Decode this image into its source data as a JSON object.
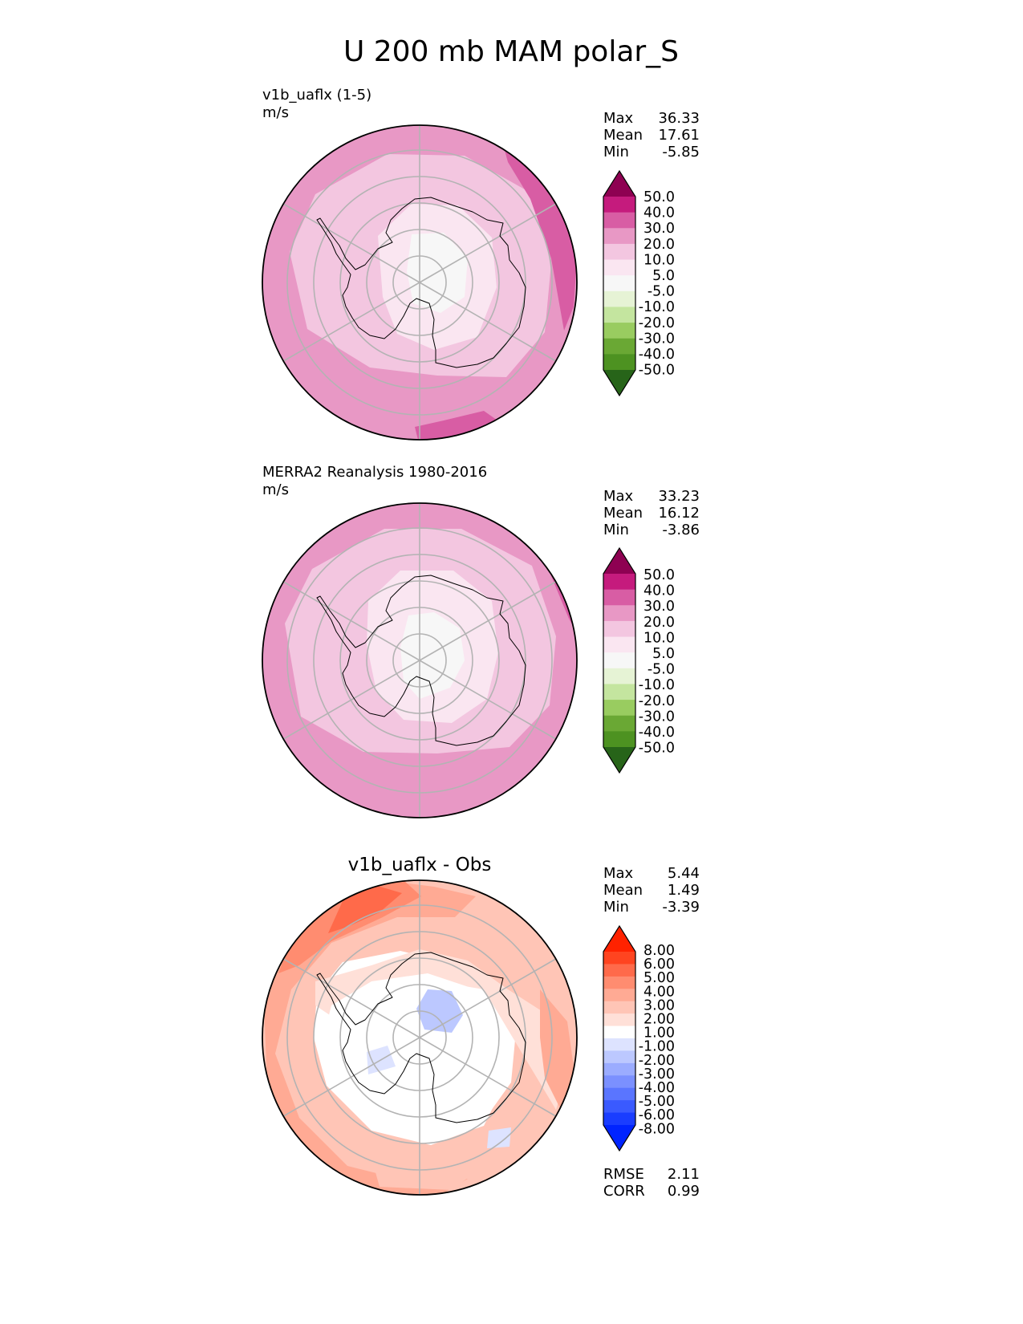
{
  "figure_title": "U 200 mb MAM polar_S",
  "chart_data": [
    {
      "type": "heatmap",
      "projection": "south polar stereographic",
      "title": "v1b_uaflx (1-5)",
      "units": "m/s",
      "stats": [
        {
          "label": "Max",
          "value": "36.33"
        },
        {
          "label": "Mean",
          "value": "17.61"
        },
        {
          "label": "Min",
          "value": "-5.85"
        }
      ],
      "colorbar": {
        "ticks": [
          "50.0",
          "40.0",
          "30.0",
          "20.0",
          "10.0",
          "5.0",
          "-5.0",
          "-10.0",
          "-20.0",
          "-30.0",
          "-40.0",
          "-50.0"
        ],
        "colors": [
          "#8e0152",
          "#c51b7d",
          "#d85da4",
          "#e898c5",
          "#f3c6e0",
          "#fae6f1",
          "#f7f7f7",
          "#e6f3d5",
          "#c4e59f",
          "#99cc60",
          "#6aa834",
          "#4d9221",
          "#276419"
        ],
        "extend": "both"
      }
    },
    {
      "type": "heatmap",
      "projection": "south polar stereographic",
      "title": "MERRA2 Reanalysis 1980-2016",
      "units": "m/s",
      "stats": [
        {
          "label": "Max",
          "value": "33.23"
        },
        {
          "label": "Mean",
          "value": "16.12"
        },
        {
          "label": "Min",
          "value": "-3.86"
        }
      ],
      "colorbar": {
        "ticks": [
          "50.0",
          "40.0",
          "30.0",
          "20.0",
          "10.0",
          "5.0",
          "-5.0",
          "-10.0",
          "-20.0",
          "-30.0",
          "-40.0",
          "-50.0"
        ],
        "colors": [
          "#8e0152",
          "#c51b7d",
          "#d85da4",
          "#e898c5",
          "#f3c6e0",
          "#fae6f1",
          "#f7f7f7",
          "#e6f3d5",
          "#c4e59f",
          "#99cc60",
          "#6aa834",
          "#4d9221",
          "#276419"
        ],
        "extend": "both"
      }
    },
    {
      "type": "heatmap",
      "projection": "south polar stereographic",
      "title": "v1b_uaflx - Obs",
      "units": "",
      "stats": [
        {
          "label": "Max",
          "value": "5.44"
        },
        {
          "label": "Mean",
          "value": "1.49"
        },
        {
          "label": "Min",
          "value": "-3.39"
        }
      ],
      "extra_stats": [
        {
          "label": "RMSE",
          "value": "2.11"
        },
        {
          "label": "CORR",
          "value": "0.99"
        }
      ],
      "colorbar": {
        "ticks": [
          "8.00",
          "6.00",
          "5.00",
          "4.00",
          "3.00",
          "2.00",
          "1.00",
          "-1.00",
          "-2.00",
          "-3.00",
          "-4.00",
          "-5.00",
          "-6.00",
          "-8.00"
        ],
        "colors": [
          "#ff2200",
          "#ff4420",
          "#ff6a4a",
          "#ff8c70",
          "#ffaa94",
          "#ffc5b6",
          "#ffe0d8",
          "#ffffff",
          "#dde3ff",
          "#bcc8ff",
          "#9bacff",
          "#7b90ff",
          "#5a75ff",
          "#3a5aff",
          "#1a3dff",
          "#0024ff"
        ],
        "extend": "both"
      }
    }
  ]
}
